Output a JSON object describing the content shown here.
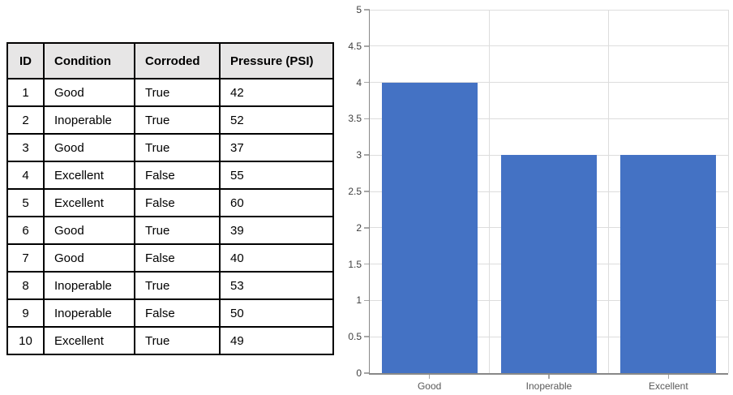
{
  "table": {
    "headers": [
      "ID",
      "Condition",
      "Corroded",
      "Pressure (PSI)"
    ],
    "rows": [
      [
        "1",
        "Good",
        "True",
        "42"
      ],
      [
        "2",
        "Inoperable",
        "True",
        "52"
      ],
      [
        "3",
        "Good",
        "True",
        "37"
      ],
      [
        "4",
        "Excellent",
        "False",
        "55"
      ],
      [
        "5",
        "Excellent",
        "False",
        "60"
      ],
      [
        "6",
        "Good",
        "True",
        "39"
      ],
      [
        "7",
        "Good",
        "False",
        "40"
      ],
      [
        "8",
        "Inoperable",
        "True",
        "53"
      ],
      [
        "9",
        "Inoperable",
        "False",
        "50"
      ],
      [
        "10",
        "Excellent",
        "True",
        "49"
      ]
    ],
    "header_bg": "#E7E6E6",
    "border_color": "#000000"
  },
  "chart_data": {
    "type": "bar",
    "categories": [
      "Good",
      "Inoperable",
      "Excellent"
    ],
    "values": [
      4,
      3,
      3
    ],
    "title": "",
    "xlabel": "",
    "ylabel": "",
    "ylim": [
      0,
      5
    ],
    "yticks": [
      0,
      0.5,
      1,
      1.5,
      2,
      2.5,
      3,
      3.5,
      4,
      4.5,
      5
    ],
    "grid": true,
    "legend": false,
    "bar_color": "#4472C4",
    "gridline_color": "#DDDDDD",
    "axis_color": "#888888",
    "tick_label_color": "#404040",
    "category_label_color": "#595959"
  }
}
